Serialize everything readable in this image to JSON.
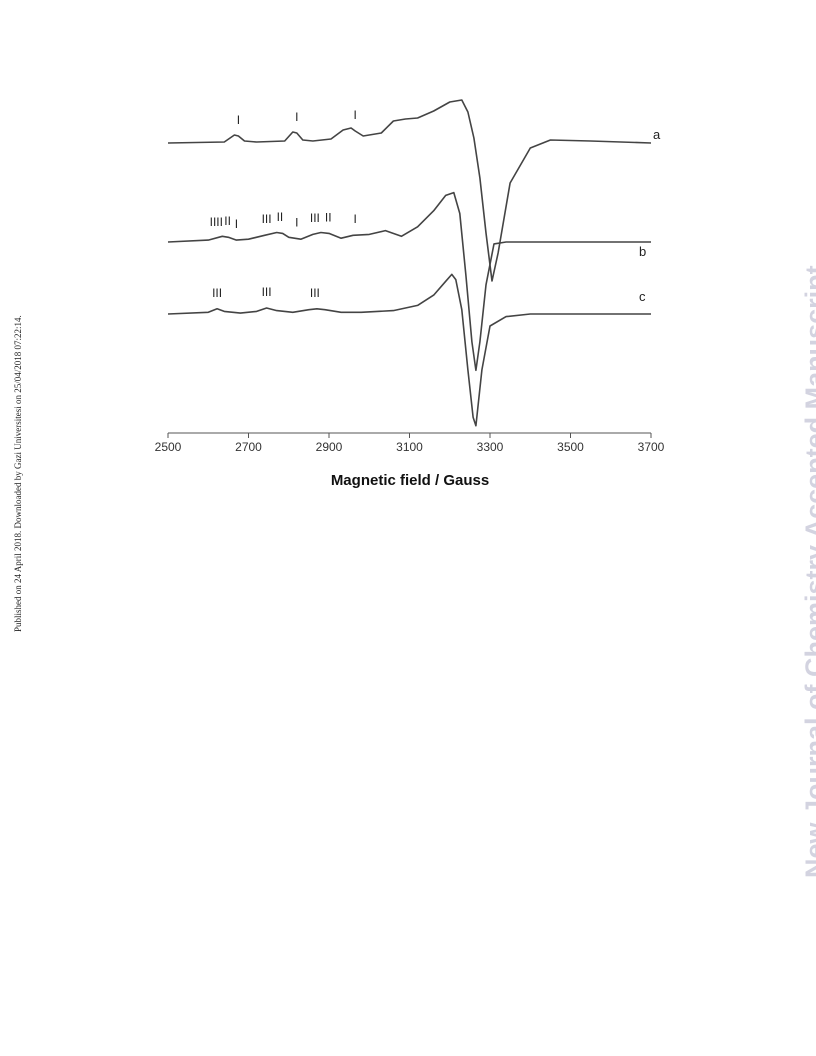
{
  "side_note": "Published on 24 April 2018. Downloaded by Gazi Universitesi on 25/04/2018 07:22:14.",
  "journal_mark": "New Journal of Chemistry Accepted Manuscript",
  "chart_data": {
    "type": "line",
    "xlabel": "Magnetic field / Gauss",
    "xlim": [
      2500,
      3700
    ],
    "xticks": [
      2500,
      2700,
      2900,
      3100,
      3300,
      3500,
      3700
    ],
    "grid": false,
    "legend": "labels at right end of each trace",
    "series": [
      {
        "name": "a",
        "x": [
          2500,
          2640,
          2665,
          2675,
          2690,
          2720,
          2790,
          2810,
          2820,
          2835,
          2860,
          2905,
          2935,
          2955,
          2965,
          2985,
          3030,
          3060,
          3090,
          3120,
          3160,
          3200,
          3230,
          3245,
          3260,
          3275,
          3290,
          3305,
          3320,
          3350,
          3400,
          3450,
          3550,
          3700
        ],
        "y": [
          0.0,
          0.01,
          0.08,
          0.07,
          0.02,
          0.01,
          0.02,
          0.11,
          0.1,
          0.03,
          0.02,
          0.04,
          0.13,
          0.15,
          0.12,
          0.07,
          0.1,
          0.22,
          0.24,
          0.25,
          0.32,
          0.41,
          0.43,
          0.31,
          0.05,
          -0.35,
          -0.9,
          -1.38,
          -1.1,
          -0.4,
          -0.05,
          0.03,
          0.02,
          0.0
        ]
      },
      {
        "name": "b",
        "x": [
          2500,
          2600,
          2635,
          2650,
          2670,
          2700,
          2740,
          2770,
          2785,
          2800,
          2830,
          2860,
          2880,
          2900,
          2930,
          2960,
          3000,
          3040,
          3080,
          3120,
          3160,
          3190,
          3210,
          3225,
          3240,
          3255,
          3265,
          3275,
          3290,
          3310,
          3340,
          3400,
          3700
        ],
        "y": [
          0.0,
          0.02,
          0.06,
          0.05,
          0.02,
          0.03,
          0.07,
          0.1,
          0.09,
          0.05,
          0.03,
          0.08,
          0.1,
          0.09,
          0.04,
          0.07,
          0.08,
          0.12,
          0.06,
          0.16,
          0.33,
          0.49,
          0.52,
          0.3,
          -0.35,
          -1.05,
          -1.35,
          -1.05,
          -0.45,
          -0.02,
          0.0,
          0.0,
          0.0
        ]
      },
      {
        "name": "c",
        "x": [
          2500,
          2600,
          2622,
          2640,
          2680,
          2720,
          2745,
          2770,
          2810,
          2850,
          2870,
          2890,
          2930,
          2980,
          3060,
          3120,
          3160,
          3190,
          3205,
          3215,
          3230,
          3245,
          3258,
          3265,
          3280,
          3300,
          3340,
          3400,
          3700
        ],
        "y": [
          0.0,
          0.02,
          0.06,
          0.03,
          0.01,
          0.03,
          0.07,
          0.04,
          0.02,
          0.05,
          0.06,
          0.05,
          0.02,
          0.02,
          0.04,
          0.1,
          0.22,
          0.38,
          0.46,
          0.4,
          0.05,
          -0.65,
          -1.2,
          -1.3,
          -0.65,
          -0.14,
          -0.03,
          0.0,
          0.0
        ]
      }
    ],
    "annotations": [
      {
        "trace": "a",
        "text": "I",
        "x": 2675
      },
      {
        "trace": "a",
        "text": "I",
        "x": 2820
      },
      {
        "trace": "a",
        "text": "I",
        "x": 2965
      },
      {
        "trace": "b",
        "text": "IIII",
        "x": 2620
      },
      {
        "trace": "b",
        "text": "II",
        "x": 2648
      },
      {
        "trace": "b",
        "text": "I",
        "x": 2670
      },
      {
        "trace": "b",
        "text": "III",
        "x": 2745
      },
      {
        "trace": "b",
        "text": "II",
        "x": 2778
      },
      {
        "trace": "b",
        "text": "I",
        "x": 2820
      },
      {
        "trace": "b",
        "text": "III",
        "x": 2865
      },
      {
        "trace": "b",
        "text": "II",
        "x": 2898
      },
      {
        "trace": "b",
        "text": "I",
        "x": 2965
      },
      {
        "trace": "c",
        "text": "III",
        "x": 2622
      },
      {
        "trace": "c",
        "text": "III",
        "x": 2745
      },
      {
        "trace": "c",
        "text": "III",
        "x": 2865
      }
    ],
    "line_color": "#444444",
    "axis_color": "#555555"
  }
}
